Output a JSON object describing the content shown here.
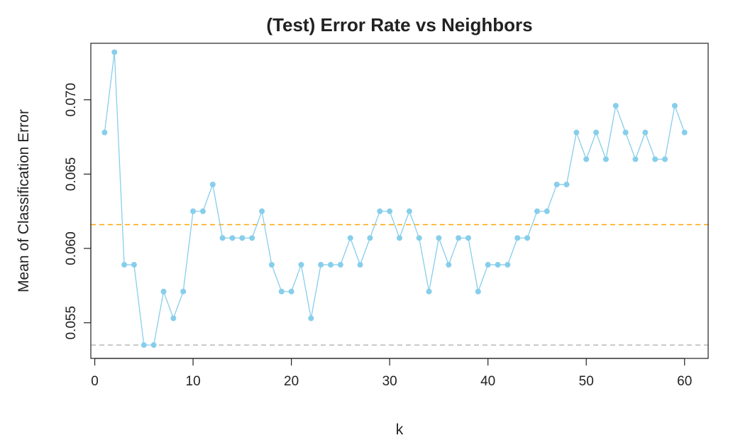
{
  "chart_data": {
    "type": "line",
    "title": "(Test) Error Rate vs Neighbors",
    "xlabel": "k",
    "ylabel": "Mean of Classification Error",
    "xlim": [
      -0.4,
      62.4
    ],
    "ylim": [
      0.0526,
      0.0738
    ],
    "xticks": [
      0,
      10,
      20,
      30,
      40,
      50,
      60
    ],
    "xtick_labels": [
      "0",
      "10",
      "20",
      "30",
      "40",
      "50",
      "60"
    ],
    "yticks": [
      0.055,
      0.06,
      0.065,
      0.07
    ],
    "ytick_labels": [
      "0.055",
      "0.060",
      "0.065",
      "0.070"
    ],
    "grid": false,
    "legend": "none",
    "series": [
      {
        "color": "#87CEEB",
        "x": [
          1,
          2,
          3,
          4,
          5,
          6,
          7,
          8,
          9,
          10,
          11,
          12,
          13,
          14,
          15,
          16,
          17,
          18,
          19,
          20,
          21,
          22,
          23,
          24,
          25,
          26,
          27,
          28,
          29,
          30,
          31,
          32,
          33,
          34,
          35,
          36,
          37,
          38,
          39,
          40,
          41,
          42,
          43,
          44,
          45,
          46,
          47,
          48,
          49,
          50,
          51,
          52,
          53,
          54,
          55,
          56,
          57,
          58,
          59,
          60
        ],
        "y": [
          0.0678,
          0.0732,
          0.0589,
          0.0589,
          0.0535,
          0.0535,
          0.0571,
          0.0553,
          0.0571,
          0.0625,
          0.0625,
          0.0643,
          0.0607,
          0.0607,
          0.0607,
          0.0607,
          0.0625,
          0.0589,
          0.0571,
          0.0571,
          0.0589,
          0.0553,
          0.0589,
          0.0589,
          0.0589,
          0.0607,
          0.0589,
          0.0607,
          0.0625,
          0.0625,
          0.0607,
          0.0625,
          0.0607,
          0.0571,
          0.0607,
          0.0589,
          0.0607,
          0.0607,
          0.0571,
          0.0589,
          0.0589,
          0.0589,
          0.0607,
          0.0607,
          0.0625,
          0.0625,
          0.0643,
          0.0643,
          0.0678,
          0.066,
          0.0678,
          0.066,
          0.0696,
          0.0678,
          0.066,
          0.0678,
          0.066,
          0.066,
          0.0696,
          0.0678
        ]
      }
    ],
    "reference_lines": [
      {
        "y": 0.0616,
        "color": "#FFA500",
        "style": "dashed"
      },
      {
        "y": 0.0535,
        "color": "#BEBEBE",
        "style": "dashed"
      }
    ]
  }
}
